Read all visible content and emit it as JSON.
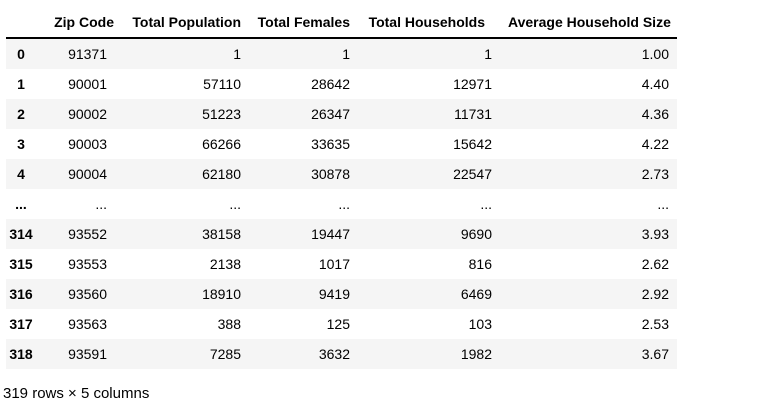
{
  "table": {
    "index_header": "",
    "headers": [
      "Zip Code",
      "Total Population",
      "Total Females",
      "Total Households",
      "Average Household Size"
    ],
    "rows": [
      [
        "0",
        "91371",
        "1",
        "1",
        "1",
        "1.00"
      ],
      [
        "1",
        "90001",
        "57110",
        "28642",
        "12971",
        "4.40"
      ],
      [
        "2",
        "90002",
        "51223",
        "26347",
        "11731",
        "4.36"
      ],
      [
        "3",
        "90003",
        "66266",
        "33635",
        "15642",
        "4.22"
      ],
      [
        "4",
        "90004",
        "62180",
        "30878",
        "22547",
        "2.73"
      ],
      [
        "...",
        "...",
        "...",
        "...",
        "...",
        "..."
      ],
      [
        "314",
        "93552",
        "38158",
        "19447",
        "9690",
        "3.93"
      ],
      [
        "315",
        "93553",
        "2138",
        "1017",
        "816",
        "2.62"
      ],
      [
        "316",
        "93560",
        "18910",
        "9419",
        "6469",
        "2.92"
      ],
      [
        "317",
        "93563",
        "388",
        "125",
        "103",
        "2.53"
      ],
      [
        "318",
        "93591",
        "7285",
        "3632",
        "1982",
        "3.67"
      ]
    ],
    "footer": "319 rows × 5 columns"
  },
  "colors": {
    "row_stripe": "#f5f5f5",
    "header_border": "#000000",
    "text": "#000000",
    "background": "#ffffff"
  },
  "chart_data": {
    "type": "table",
    "title": "",
    "columns": [
      "index",
      "Zip Code",
      "Total Population",
      "Total Females",
      "Total Households",
      "Average Household Size"
    ],
    "rows_shown": [
      [
        0,
        91371,
        1,
        1,
        1,
        1.0
      ],
      [
        1,
        90001,
        57110,
        28642,
        12971,
        4.4
      ],
      [
        2,
        90002,
        51223,
        26347,
        11731,
        4.36
      ],
      [
        3,
        90003,
        66266,
        33635,
        15642,
        4.22
      ],
      [
        4,
        90004,
        62180,
        30878,
        22547,
        2.73
      ],
      [
        314,
        93552,
        38158,
        19447,
        9690,
        3.93
      ],
      [
        315,
        93553,
        2138,
        1017,
        816,
        2.62
      ],
      [
        316,
        93560,
        18910,
        9419,
        6469,
        2.92
      ],
      [
        317,
        93563,
        388,
        125,
        103,
        2.53
      ],
      [
        318,
        93591,
        7285,
        3632,
        1982,
        3.67
      ]
    ],
    "truncated": true,
    "total_rows": 319,
    "total_columns": 5,
    "layout_hints": {
      "striped_rows": "odd rows shaded",
      "header_underline": true,
      "numeric_alignment": "right",
      "index_alignment": "center"
    }
  }
}
